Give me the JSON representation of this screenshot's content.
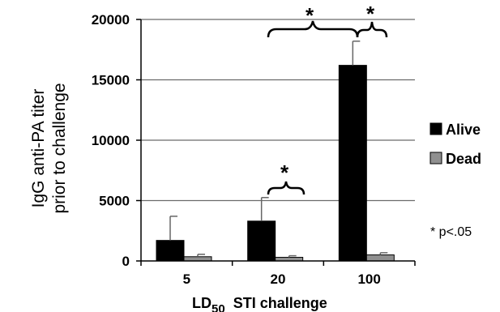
{
  "chart_data": {
    "type": "bar",
    "categories": [
      "5",
      "20",
      "100"
    ],
    "series": [
      {
        "name": "Alive",
        "values": [
          1700,
          3300,
          16200
        ],
        "errors": [
          2000,
          1950,
          2000
        ],
        "color": "#000000"
      },
      {
        "name": "Dead",
        "values": [
          350,
          300,
          500
        ],
        "errors": [
          200,
          130,
          180
        ],
        "color": "#909090"
      }
    ],
    "ylabel_line1": "IgG anti-PA titer",
    "ylabel_line2": "prior to challenge",
    "xlabel_main": "LD",
    "xlabel_sub": "50",
    "xlabel_rest": "STI challenge",
    "ylim": [
      0,
      20000
    ],
    "yticks": [
      0,
      5000,
      10000,
      15000,
      20000
    ],
    "grid": true,
    "legend_position": "right",
    "significance_marker": "*",
    "note": "* p<.05"
  }
}
